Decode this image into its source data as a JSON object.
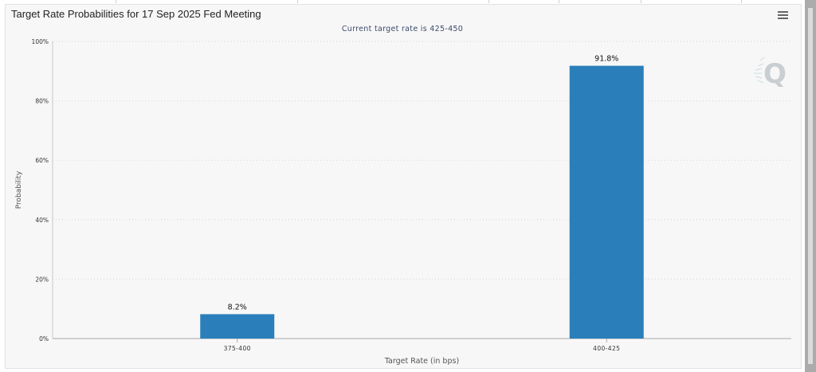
{
  "chart_title": "Target Rate Probabilities for 17 Sep 2025 Fed Meeting",
  "subtitle": "Current target rate is 425-450",
  "watermark_letter": "Q",
  "menu_icon": "hamburger-menu-icon",
  "colors": {
    "bar": "#2a7fba",
    "grid": "#d6d6d6",
    "axis_text": "#333333",
    "background": "#f7f7f7"
  },
  "chart_data": {
    "type": "bar",
    "title": "Target Rate Probabilities for 17 Sep 2025 Fed Meeting",
    "subtitle": "Current target rate is 425-450",
    "categories": [
      "375-400",
      "400-425"
    ],
    "values": [
      8.2,
      91.8
    ],
    "data_labels": [
      "8.2%",
      "91.8%"
    ],
    "xlabel": "Target Rate (in bps)",
    "ylabel": "Probability",
    "ylim": [
      0,
      100
    ],
    "yticks": [
      "0%",
      "20%",
      "40%",
      "60%",
      "80%",
      "100%"
    ],
    "ytick_values": [
      0,
      20,
      40,
      60,
      80,
      100
    ],
    "grid": true,
    "legend": "none"
  }
}
